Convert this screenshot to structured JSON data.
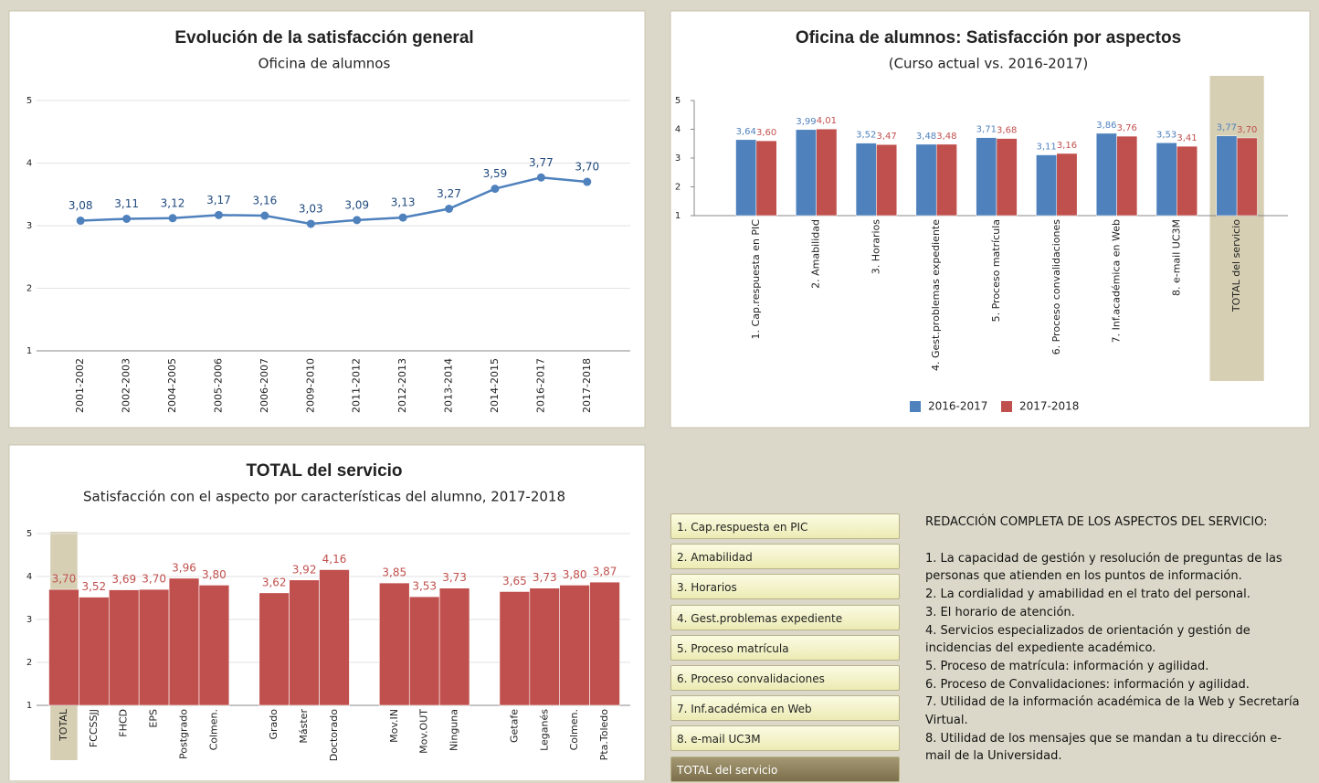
{
  "chart_data": [
    {
      "type": "line",
      "title": "Evolución de la satisfacción general",
      "subtitle": "Oficina de alumnos",
      "categories": [
        "2001-2002",
        "2002-2003",
        "2004-2005",
        "2005-2006",
        "2006-2007",
        "2009-2010",
        "2011-2012",
        "2012-2013",
        "2013-2014",
        "2014-2015",
        "2016-2017",
        "2017-2018"
      ],
      "values": [
        3.08,
        3.11,
        3.12,
        3.17,
        3.16,
        3.03,
        3.09,
        3.13,
        3.27,
        3.59,
        3.77,
        3.7
      ],
      "value_labels": [
        "3,08",
        "3,11",
        "3,12",
        "3,17",
        "3,16",
        "3,03",
        "3,09",
        "3,13",
        "3,27",
        "3,59",
        "3,77",
        "3,70"
      ],
      "color": "#4f81bd",
      "ylim": [
        1,
        5
      ],
      "yticks": [
        1,
        2,
        3,
        4,
        5
      ],
      "grid": true
    },
    {
      "type": "bar",
      "title": "Oficina de alumnos: Satisfacción por aspectos",
      "subtitle": "(Curso actual vs. 2016-2017)",
      "categories": [
        "1. Cap.respuesta en PIC",
        "2. Amabilidad",
        "3. Horarios",
        "4. Gest.problemas expediente",
        "5. Proceso matrícula",
        "6. Proceso convalidaciones",
        "7. Inf.académica en Web",
        "8. e-mail UC3M",
        "TOTAL del servicio"
      ],
      "series": [
        {
          "name": "2016-2017",
          "color": "#4f81bd",
          "values": [
            3.64,
            3.99,
            3.52,
            3.48,
            3.71,
            3.11,
            3.86,
            3.53,
            3.77
          ],
          "value_labels": [
            "3,64",
            "3,99",
            "3,52",
            "3,48",
            "3,71",
            "3,11",
            "3,86",
            "3,53",
            "3,77"
          ]
        },
        {
          "name": "2017-2018",
          "color": "#c0504d",
          "values": [
            3.6,
            4.01,
            3.47,
            3.48,
            3.68,
            3.16,
            3.76,
            3.41,
            3.7
          ],
          "value_labels": [
            "3,60",
            "4,01",
            "3,47",
            "3,48",
            "3,68",
            "3,16",
            "3,76",
            "3,41",
            "3,70"
          ]
        }
      ],
      "ylim": [
        1,
        5
      ],
      "yticks": [
        1,
        2,
        3,
        4,
        5
      ],
      "grid": false,
      "legend": "bottom"
    },
    {
      "type": "bar",
      "title": "TOTAL del servicio",
      "subtitle": "Satisfacción con el aspecto por características del alumno, 2017-2018",
      "categories": [
        "TOTAL",
        "FCCSSJJ",
        "FHCD",
        "EPS",
        "Postgrado",
        "Colmen.",
        null,
        "Grado",
        "Máster",
        "Doctorado",
        null,
        "Mov.IN",
        "Mov.OUT",
        "Ninguna",
        null,
        "Getafe",
        "Leganés",
        "Colmen.",
        "Pta.Toledo"
      ],
      "values": [
        3.7,
        3.52,
        3.69,
        3.7,
        3.96,
        3.8,
        null,
        3.62,
        3.92,
        4.16,
        null,
        3.85,
        3.53,
        3.73,
        null,
        3.65,
        3.73,
        3.8,
        3.87
      ],
      "value_labels": [
        "3,70",
        "3,52",
        "3,69",
        "3,70",
        "3,96",
        "3,80",
        null,
        "3,62",
        "3,92",
        "4,16",
        null,
        "3,85",
        "3,53",
        "3,73",
        null,
        "3,65",
        "3,73",
        "3,80",
        "3,87"
      ],
      "color": "#c0504d",
      "ylim": [
        1,
        5
      ],
      "yticks": [
        1,
        2,
        3,
        4,
        5
      ],
      "grid": true
    }
  ],
  "buttons": [
    "1. Cap.respuesta en PIC",
    "2. Amabilidad",
    "3. Horarios",
    "4. Gest.problemas expediente",
    "5. Proceso matrícula",
    "6. Proceso convalidaciones",
    "7. Inf.académica en Web",
    "8. e-mail UC3M",
    "TOTAL del servicio"
  ],
  "description": {
    "heading": "REDACCIÓN COMPLETA DE LOS ASPECTOS DEL SERVICIO:",
    "items": [
      "1. La capacidad de gestión y resolución de preguntas de las personas que atienden en los puntos de información.",
      "2. La cordialidad y amabilidad en el trato del personal.",
      "3. El horario de atención.",
      "4. Servicios especializados de orientación y gestión de incidencias del expediente académico.",
      "5. Proceso de matrícula: información y agilidad.",
      "6. Proceso de Convalidaciones: información y agilidad.",
      "7. Utilidad de la información académica de la Web y Secretaría Virtual.",
      "8. Utilidad de los mensajes que se mandan a tu dirección e-mail de la Universidad."
    ]
  }
}
